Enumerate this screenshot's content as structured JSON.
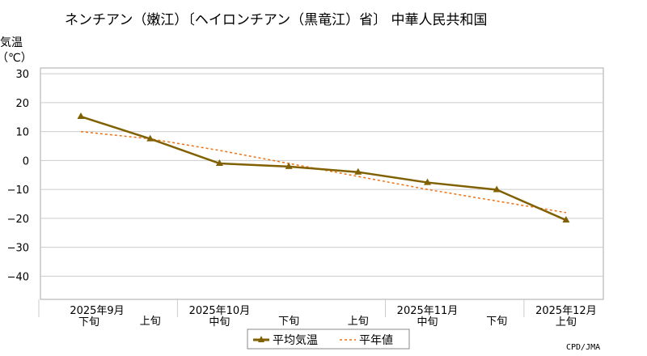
{
  "chart_data": {
    "type": "line",
    "title": "ネンチアン（嫩江）〔ヘイロンチアン（黒竜江）省〕 中華人民共和国",
    "ylabel": "気温",
    "ylabel_unit": "（℃）",
    "ylim": [
      -48,
      32
    ],
    "yticks": [
      30,
      20,
      10,
      0,
      -10,
      -20,
      -30,
      -40
    ],
    "categories": [
      "下旬",
      "上旬",
      "中旬",
      "下旬",
      "上旬",
      "中旬",
      "下旬",
      "上旬"
    ],
    "month_labels": [
      {
        "label": "2025年9月",
        "index": 0
      },
      {
        "label": "2025年10月",
        "index": 2
      },
      {
        "label": "2025年11月",
        "index": 5
      },
      {
        "label": "2025年12月",
        "index": 7
      }
    ],
    "series": [
      {
        "name": "平均気温",
        "values": [
          15.2,
          7.5,
          -1.0,
          -2.1,
          -4.0,
          -7.6,
          -10.1,
          -20.6
        ],
        "color": "#806000",
        "marker": "triangle",
        "style": "solid"
      },
      {
        "name": "平年値",
        "values": [
          10.0,
          7.5,
          3.5,
          -1.0,
          -5.5,
          -10.0,
          -14.0,
          -18.0
        ],
        "color": "#f07010",
        "style": "dotted"
      }
    ],
    "grid": true,
    "legend_position": "bottom-center",
    "credit": "CPD/JMA"
  }
}
